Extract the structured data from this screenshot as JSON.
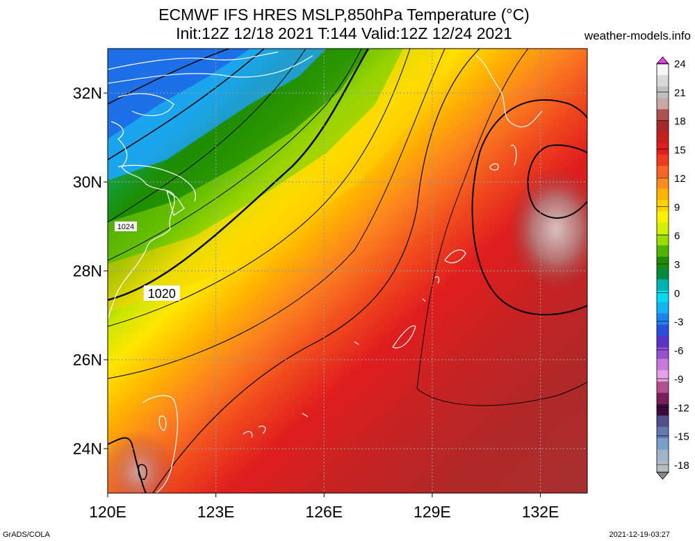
{
  "header": {
    "title_line1": "ECMWF IFS HRES MSLP,850hPa Temperature (°C)",
    "title_line2": "Init:12Z 12/18 2021 T:144 Valid:12Z 12/24 2021",
    "site": "weather-models.info"
  },
  "footer": {
    "left": "GrADS/COLA",
    "right": "2021-12-19-03:27"
  },
  "map": {
    "lon_range": [
      120,
      133.3
    ],
    "lat_range": [
      23,
      33
    ],
    "x_ticks": [
      {
        "lon": 120,
        "label": "120E"
      },
      {
        "lon": 123,
        "label": "123E"
      },
      {
        "lon": 126,
        "label": "126E"
      },
      {
        "lon": 129,
        "label": "129E"
      },
      {
        "lon": 132,
        "label": "132E"
      }
    ],
    "y_ticks": [
      {
        "lat": 24,
        "label": "24N"
      },
      {
        "lat": 26,
        "label": "26N"
      },
      {
        "lat": 28,
        "label": "28N"
      },
      {
        "lat": 30,
        "label": "30N"
      },
      {
        "lat": 32,
        "label": "32N"
      }
    ],
    "isobar_labels": [
      {
        "text": "1024",
        "lon": 120.5,
        "lat": 29.0
      },
      {
        "text": "1020",
        "lon": 121.5,
        "lat": 27.5
      }
    ]
  },
  "colorbar": {
    "labels": [
      "24",
      "21",
      "18",
      "15",
      "12",
      "9",
      "6",
      "3",
      "0",
      "-3",
      "-6",
      "-9",
      "-12",
      "-15",
      "-18"
    ],
    "colors": [
      "#f5f5f5",
      "#d9d9d9",
      "#bfbfbf",
      "#c9a8a8",
      "#b05050",
      "#a82828",
      "#c81e1e",
      "#e01e1e",
      "#f03c1e",
      "#f86428",
      "#fc8c1e",
      "#ffb400",
      "#ffd200",
      "#fff000",
      "#d2f000",
      "#9bdc00",
      "#50b400",
      "#1e8c00",
      "#008c3c",
      "#00b4b4",
      "#00dcf0",
      "#14b4f0",
      "#1e82f0",
      "#2850dc",
      "#5a32c8",
      "#9650d2",
      "#c878dc",
      "#e6a0e6",
      "#b4508c",
      "#781e5a",
      "#3c0a3c",
      "#50508c",
      "#6478b4",
      "#78a0c8",
      "#a0b4c8",
      "#b4bcc4"
    ]
  }
}
